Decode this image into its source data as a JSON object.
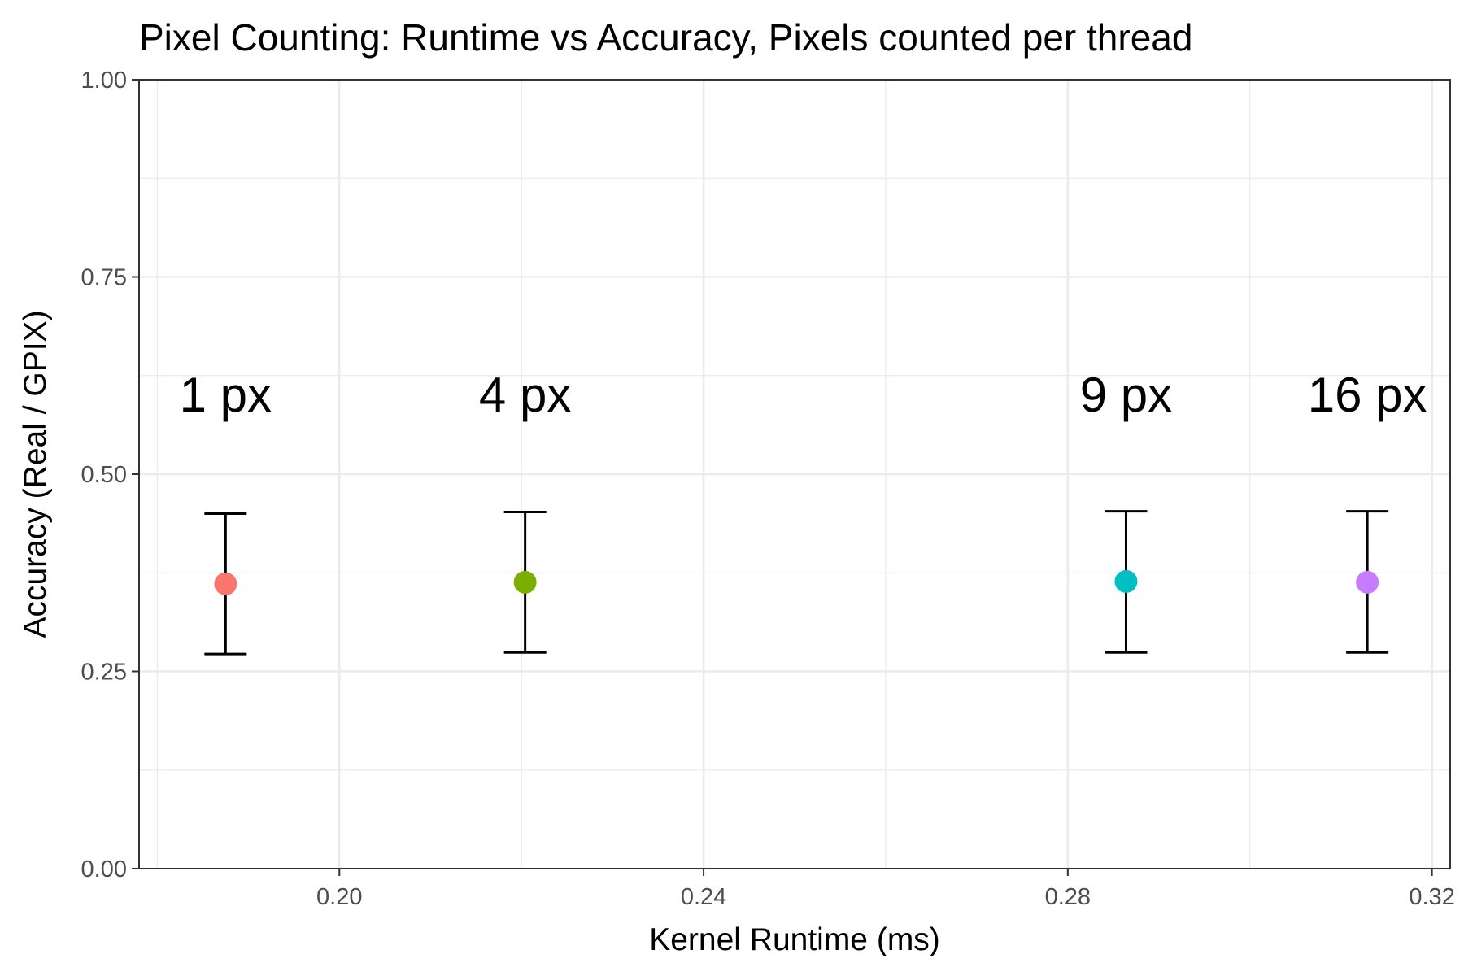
{
  "chart_data": {
    "type": "scatter",
    "title": "Pixel Counting: Runtime vs Accuracy, Pixels counted per thread",
    "xlabel": "Kernel Runtime (ms)",
    "ylabel": "Accuracy (Real / GPIX)",
    "xlim": [
      0.178,
      0.322
    ],
    "ylim": [
      0.0,
      1.0
    ],
    "x_ticks": [
      0.2,
      0.24,
      0.28,
      0.32
    ],
    "x_tick_labels": [
      "0.20",
      "0.24",
      "0.28",
      "0.32"
    ],
    "x_minor_ticks": [
      0.18,
      0.22,
      0.26,
      0.3
    ],
    "y_ticks": [
      0.0,
      0.25,
      0.5,
      0.75,
      1.0
    ],
    "y_tick_labels": [
      "0.00",
      "0.25",
      "0.50",
      "0.75",
      "1.00"
    ],
    "y_minor_ticks": [
      0.125,
      0.375,
      0.625,
      0.875
    ],
    "grid": true,
    "legend": "none",
    "label_y": 0.6,
    "points": [
      {
        "label": "1 px",
        "x": 0.1875,
        "y": 0.361,
        "ymin": 0.272,
        "ymax": 0.45,
        "color": "#F8766D"
      },
      {
        "label": "4 px",
        "x": 0.2204,
        "y": 0.363,
        "ymin": 0.274,
        "ymax": 0.452,
        "color": "#7CAE00"
      },
      {
        "label": "9 px",
        "x": 0.2864,
        "y": 0.364,
        "ymin": 0.274,
        "ymax": 0.453,
        "color": "#00BFC4"
      },
      {
        "label": "16 px",
        "x": 0.3129,
        "y": 0.363,
        "ymin": 0.274,
        "ymax": 0.453,
        "color": "#C77CFF"
      }
    ]
  }
}
